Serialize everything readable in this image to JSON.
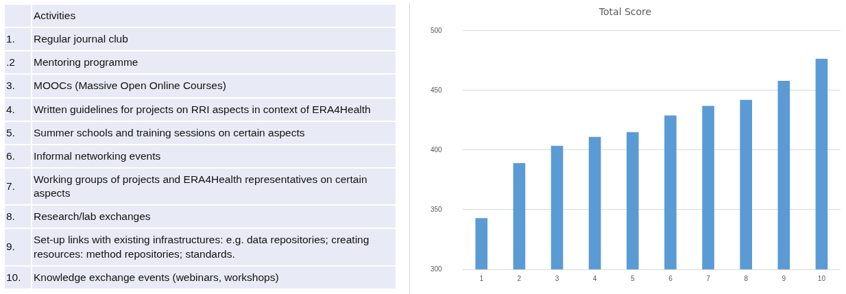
{
  "chart_data": {
    "type": "bar",
    "title": "Total Score",
    "categories": [
      "1",
      "2",
      "3",
      "4",
      "5",
      "6",
      "7",
      "8",
      "9",
      "10"
    ],
    "values": [
      343,
      389,
      403.5,
      411,
      415,
      429,
      437,
      442,
      458,
      476.5
    ],
    "color": "#5b9bd5",
    "ylim": [
      300,
      500
    ],
    "yticks": [
      300,
      350,
      400,
      450,
      500
    ],
    "grid": "y",
    "legend": false,
    "annotations": [
      "Activities",
      "1. Regular journal club",
      ".2 Mentoring programme",
      "3. MOOCs (Massive Open Online Courses)",
      "4. Written guidelines for projects on RRI aspects in context of ERA4Health",
      "5. Summer schools and training sessions on certain aspects",
      "6. Informal networking events",
      "7. Working groups of projects and ERA4Health representatives on certain aspects",
      "8. Research/lab exchanges",
      "9. Set-up links with existing infrastructures: e.g. data repositories; creating resources: method repositories; standards.",
      "10. Knowledge exchange events (webinars, workshops)"
    ]
  }
}
